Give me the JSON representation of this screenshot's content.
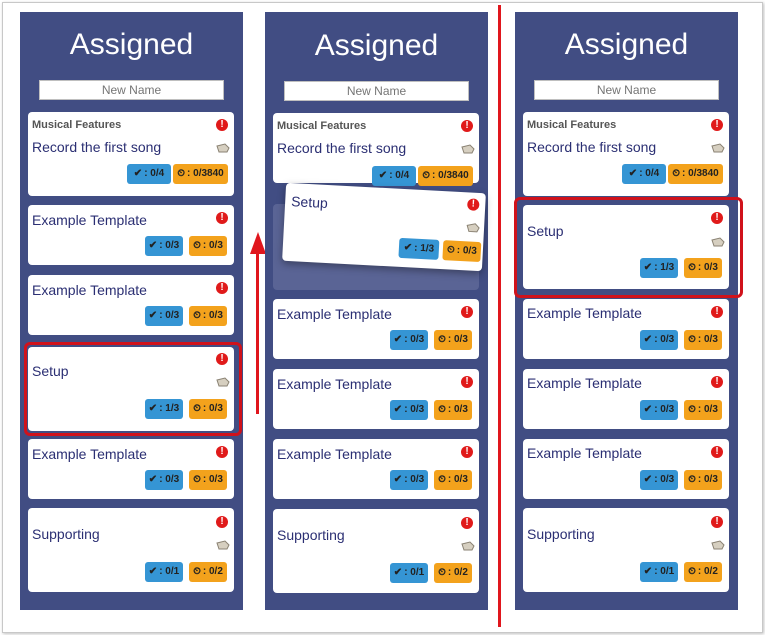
{
  "colors": {
    "column_bg": "#414d83",
    "check_badge": "#3595d4",
    "time_badge": "#f3a21c",
    "highlight": "#d0121b",
    "alert": "#e01a1a"
  },
  "icons": {
    "alert": "exclamation-circle-icon",
    "tag": "tag-icon",
    "check": "check-icon",
    "clock": "clock-icon"
  },
  "columns": [
    {
      "title": "Assigned",
      "new_name_placeholder": "New Name",
      "cards": [
        {
          "group": "Musical Features",
          "title": "Record the first song",
          "check": "0/4",
          "time": "0/3840"
        },
        {
          "title": "Example Template",
          "check": "0/3",
          "time": "0/3"
        },
        {
          "title": "Example Template",
          "check": "0/3",
          "time": "0/3"
        },
        {
          "title": "Setup",
          "check": "1/3",
          "time": "0/3"
        },
        {
          "title": "Example Template",
          "check": "0/3",
          "time": "0/3"
        },
        {
          "title": "Supporting",
          "check": "0/1",
          "time": "0/2"
        }
      ]
    },
    {
      "title": "Assigned",
      "new_name_placeholder": "New Name",
      "cards": [
        {
          "group": "Musical Features",
          "title": "Record the first song",
          "check": "0/4",
          "time": "0/3840"
        },
        {
          "title": "Example Template",
          "check": "0/3",
          "time": "0/3"
        },
        {
          "title": "Example Template",
          "check": "0/3",
          "time": "0/3"
        },
        {
          "title": "Example Template",
          "check": "0/3",
          "time": "0/3"
        },
        {
          "title": "Supporting",
          "check": "0/1",
          "time": "0/2"
        }
      ],
      "dragged_card": {
        "title": "Setup",
        "check": "1/3",
        "time": "0/3"
      }
    },
    {
      "title": "Assigned",
      "new_name_placeholder": "New Name",
      "cards": [
        {
          "group": "Musical Features",
          "title": "Record the first song",
          "check": "0/4",
          "time": "0/3840"
        },
        {
          "title": "Setup",
          "check": "1/3",
          "time": "0/3"
        },
        {
          "title": "Example Template",
          "check": "0/3",
          "time": "0/3"
        },
        {
          "title": "Example Template",
          "check": "0/3",
          "time": "0/3"
        },
        {
          "title": "Example Template",
          "check": "0/3",
          "time": "0/3"
        },
        {
          "title": "Supporting",
          "check": "0/1",
          "time": "0/2"
        }
      ]
    }
  ]
}
